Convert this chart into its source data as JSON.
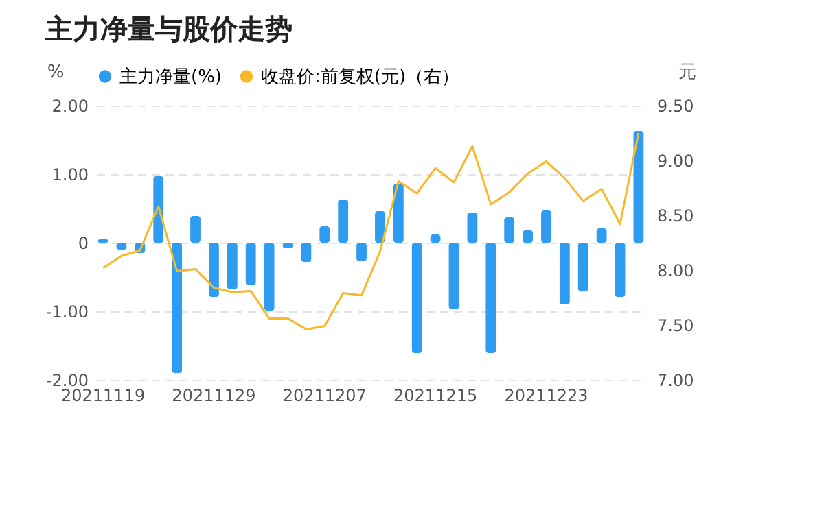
{
  "chart_data": {
    "type": "bar",
    "title": "主力净量与股价走势",
    "ylabel": "%",
    "y2label": "元",
    "categories": [
      "20211119",
      null,
      null,
      null,
      null,
      null,
      "20211129",
      null,
      null,
      null,
      null,
      null,
      "20211207",
      null,
      null,
      null,
      null,
      null,
      "20211215",
      null,
      null,
      null,
      null,
      null,
      "20211223",
      null,
      null,
      null,
      null,
      null
    ],
    "series": [
      {
        "name": "主力净量(%)",
        "color": "#2e9cf0",
        "values": [
          0.05,
          -0.1,
          -0.15,
          0.97,
          -1.9,
          0.39,
          -0.79,
          -0.68,
          -0.62,
          -0.99,
          -0.08,
          -0.28,
          0.24,
          0.63,
          -0.27,
          0.46,
          0.86,
          -1.61,
          0.12,
          -0.97,
          0.44,
          -1.61,
          0.37,
          0.18,
          0.47,
          -0.9,
          -0.71,
          0.21,
          -0.79,
          1.63
        ]
      },
      {
        "name": "收盘价:前复权(元)（右）",
        "type": "line",
        "axis": "y2",
        "color": "#f7b928",
        "values": [
          8.02,
          8.13,
          8.18,
          8.58,
          7.99,
          8.01,
          7.84,
          7.8,
          7.81,
          7.56,
          7.56,
          7.46,
          7.49,
          7.79,
          7.77,
          8.17,
          8.81,
          8.7,
          8.93,
          8.8,
          9.13,
          8.6,
          8.71,
          8.88,
          8.99,
          8.84,
          8.63,
          8.74,
          8.42,
          9.25
        ]
      }
    ],
    "ylim": [
      -2,
      2
    ],
    "yticks": [
      {
        "value": -2,
        "label": "-2.00"
      },
      {
        "value": -1,
        "label": "-1.00"
      },
      {
        "value": 0,
        "label": "0"
      },
      {
        "value": 1,
        "label": "1.00"
      },
      {
        "value": 2,
        "label": "2.00"
      }
    ],
    "y2lim": [
      7,
      9.5
    ],
    "y2ticks": [
      {
        "value": 7,
        "label": "7.00"
      },
      {
        "value": 7.5,
        "label": "7.50"
      },
      {
        "value": 8,
        "label": "8.00"
      },
      {
        "value": 8.5,
        "label": "8.50"
      },
      {
        "value": 9,
        "label": "9.00"
      },
      {
        "value": 9.5,
        "label": "9.50"
      }
    ],
    "grid": "y",
    "legend": "top",
    "marker": "none",
    "line_style": "solid"
  }
}
